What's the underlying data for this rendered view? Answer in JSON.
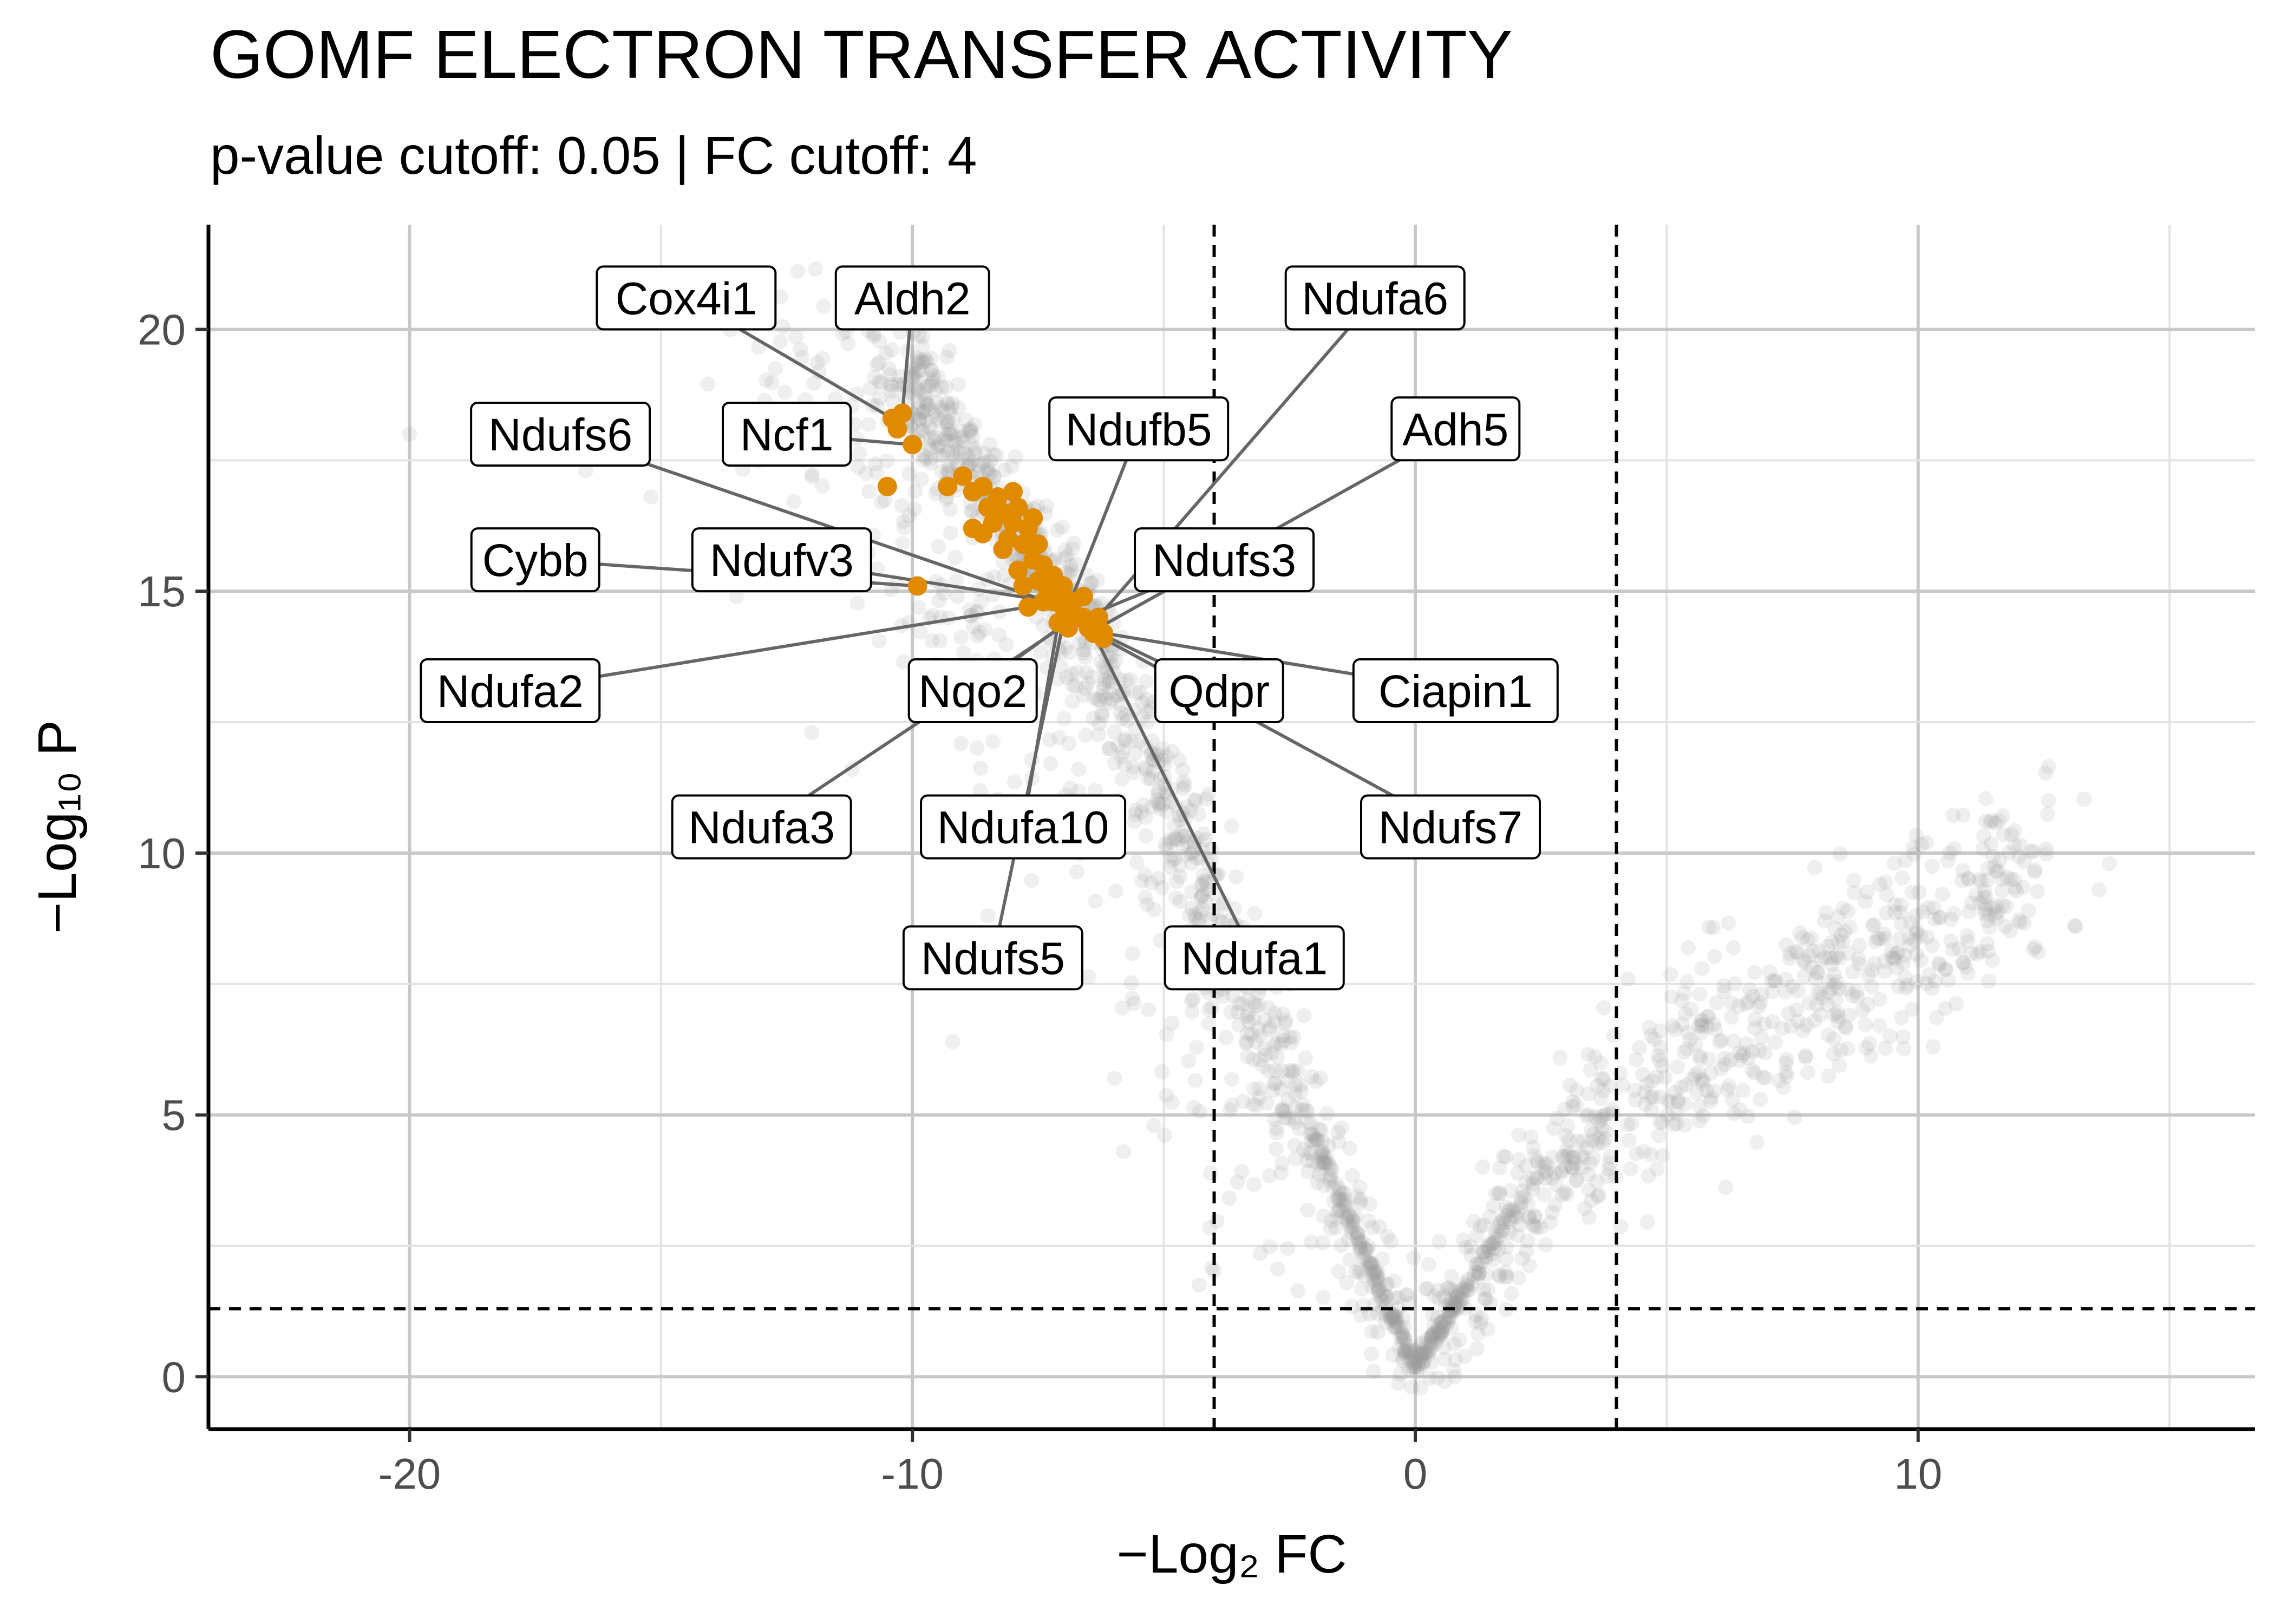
{
  "chart_data": {
    "type": "scatter",
    "title": "GOMF ELECTRON TRANSFER ACTIVITY",
    "subtitle": "p-value cutoff: 0.05 | FC cutoff: 4",
    "xlabel": "−Log₂ FC",
    "ylabel": "−Log₁₀ P",
    "xlim": [
      -24,
      16.7
    ],
    "ylim": [
      -1,
      22
    ],
    "x_ticks": [
      -20,
      -10,
      0,
      10
    ],
    "x_tick_labels": [
      "-20",
      "-10",
      "0",
      "10"
    ],
    "y_ticks": [
      0,
      5,
      10,
      15,
      20
    ],
    "y_tick_labels": [
      "0",
      "5",
      "10",
      "15",
      "20"
    ],
    "grid": true,
    "legend": "none",
    "cutoffs": {
      "fc_lines": [
        -4,
        4
      ],
      "p_line": 1.3
    },
    "colors": {
      "background_points": "#999999",
      "highlight_points": "#E08A00",
      "cutoff_lines": "#000000",
      "grid": "#c8c8c8",
      "connector": "#666666"
    },
    "highlighted_genes": [
      {
        "label": "Cox4i1",
        "x": -10.4,
        "y": 18.3,
        "label_x": -14.5,
        "label_y": 20.6
      },
      {
        "label": "Aldh2",
        "x": -10.2,
        "y": 18.4,
        "label_x": -10.0,
        "label_y": 20.6
      },
      {
        "label": "Ndufa6",
        "x": -6.4,
        "y": 14.4,
        "label_x": -0.8,
        "label_y": 20.6
      },
      {
        "label": "Ndufs6",
        "x": -7.0,
        "y": 14.7,
        "label_x": -17.0,
        "label_y": 18.0
      },
      {
        "label": "Ncf1",
        "x": -10.0,
        "y": 17.8,
        "label_x": -12.5,
        "label_y": 18.0
      },
      {
        "label": "Ndufb5",
        "x": -6.9,
        "y": 14.7,
        "label_x": -5.5,
        "label_y": 18.1
      },
      {
        "label": "Adh5",
        "x": -6.3,
        "y": 14.3,
        "label_x": 0.8,
        "label_y": 18.1
      },
      {
        "label": "Cybb",
        "x": -9.9,
        "y": 15.1,
        "label_x": -17.5,
        "label_y": 15.6
      },
      {
        "label": "Ndufv3",
        "x": -7.2,
        "y": 14.8,
        "label_x": -12.6,
        "label_y": 15.6
      },
      {
        "label": "Ndufs3",
        "x": -6.6,
        "y": 14.5,
        "label_x": -3.8,
        "label_y": 15.6
      },
      {
        "label": "Ndufa2",
        "x": -7.7,
        "y": 14.7,
        "label_x": -18.0,
        "label_y": 13.1
      },
      {
        "label": "Nqo2",
        "x": -6.8,
        "y": 14.5,
        "label_x": -8.8,
        "label_y": 13.1
      },
      {
        "label": "Qdpr",
        "x": -6.5,
        "y": 14.3,
        "label_x": -3.9,
        "label_y": 13.1
      },
      {
        "label": "Ciapin1",
        "x": -6.2,
        "y": 14.2,
        "label_x": 0.8,
        "label_y": 13.1
      },
      {
        "label": "Ndufa3",
        "x": -6.9,
        "y": 14.4,
        "label_x": -13.0,
        "label_y": 10.5
      },
      {
        "label": "Ndufa10",
        "x": -7.1,
        "y": 14.4,
        "label_x": -7.8,
        "label_y": 10.5
      },
      {
        "label": "Ndufs7",
        "x": -6.4,
        "y": 14.2,
        "label_x": 0.7,
        "label_y": 10.5
      },
      {
        "label": "Ndufs5",
        "x": -7.0,
        "y": 14.4,
        "label_x": -8.4,
        "label_y": 8.0
      },
      {
        "label": "Ndufa1",
        "x": -6.4,
        "y": 14.2,
        "label_x": -3.2,
        "label_y": 8.0
      }
    ],
    "highlighted_cluster": [
      [
        -10.5,
        17.0
      ],
      [
        -10.3,
        18.1
      ],
      [
        -9.3,
        17.0
      ],
      [
        -9.0,
        17.2
      ],
      [
        -8.8,
        16.9
      ],
      [
        -8.8,
        16.2
      ],
      [
        -8.6,
        17.0
      ],
      [
        -8.5,
        16.6
      ],
      [
        -8.4,
        16.3
      ],
      [
        -8.3,
        16.8
      ],
      [
        -8.2,
        16.5
      ],
      [
        -8.1,
        16.0
      ],
      [
        -8.0,
        16.9
      ],
      [
        -8.0,
        16.3
      ],
      [
        -7.9,
        16.6
      ],
      [
        -7.9,
        15.4
      ],
      [
        -7.8,
        15.9
      ],
      [
        -7.7,
        16.2
      ],
      [
        -7.6,
        15.6
      ],
      [
        -7.5,
        15.2
      ],
      [
        -7.5,
        15.9
      ],
      [
        -7.4,
        15.5
      ],
      [
        -7.3,
        15.0
      ],
      [
        -7.2,
        15.3
      ],
      [
        -7.1,
        14.9
      ],
      [
        -7.0,
        15.1
      ],
      [
        -6.9,
        14.6
      ],
      [
        -6.8,
        14.8
      ],
      [
        -6.7,
        14.5
      ],
      [
        -6.6,
        14.9
      ],
      [
        -6.5,
        14.4
      ],
      [
        -6.4,
        14.2
      ],
      [
        -6.3,
        14.5
      ],
      [
        -6.2,
        14.1
      ],
      [
        -7.6,
        16.4
      ],
      [
        -8.2,
        15.8
      ],
      [
        -7.4,
        14.8
      ],
      [
        -6.9,
        14.3
      ],
      [
        -7.8,
        15.1
      ],
      [
        -8.6,
        16.1
      ]
    ]
  }
}
